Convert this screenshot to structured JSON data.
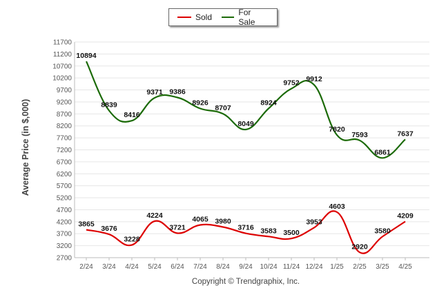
{
  "chart_data": {
    "type": "line",
    "categories": [
      "2/24",
      "3/24",
      "4/24",
      "5/24",
      "6/24",
      "7/24",
      "8/24",
      "9/24",
      "10/24",
      "11/24",
      "12/24",
      "1/25",
      "2/25",
      "3/25",
      "4/25"
    ],
    "series": [
      {
        "name": "Sold",
        "color": "#dd0000",
        "values": [
          3865,
          3676,
          3228,
          4224,
          3721,
          4065,
          3980,
          3716,
          3583,
          3500,
          3953,
          4603,
          2920,
          3580,
          4209
        ]
      },
      {
        "name": "For Sale",
        "color": "#1b6a07",
        "values": [
          10894,
          8839,
          8416,
          9371,
          9386,
          8926,
          8707,
          8049,
          8924,
          9752,
          9912,
          7820,
          7593,
          6861,
          7637
        ]
      }
    ],
    "ylabel": "Average Price (in $,000)",
    "yticks": [
      2700,
      3200,
      3700,
      4200,
      4700,
      5200,
      5700,
      6200,
      6700,
      7200,
      7700,
      8200,
      8700,
      9200,
      9700,
      10200,
      10700,
      11200,
      11700
    ],
    "ylim": [
      2700,
      11700
    ],
    "grid": true,
    "legend_position": "top-center"
  },
  "footer": {
    "copyright": "Copyright © Trendgraphix, Inc."
  }
}
